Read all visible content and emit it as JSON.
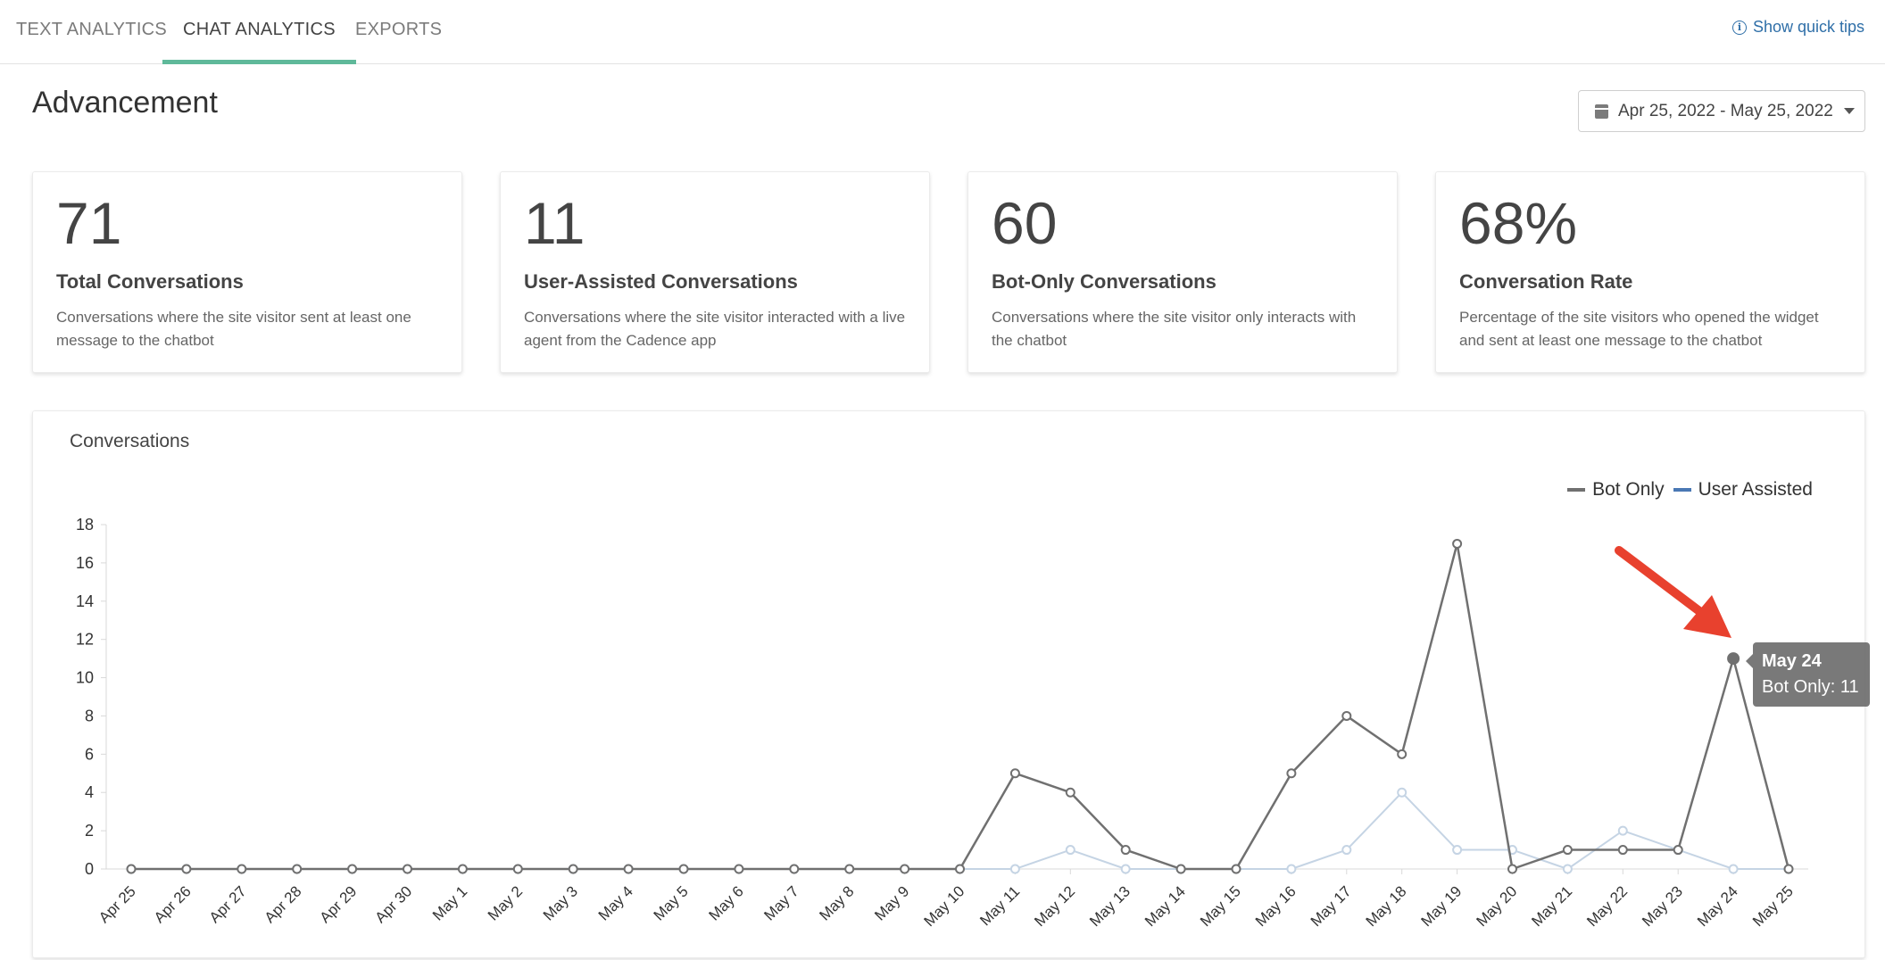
{
  "tabs": [
    {
      "label": "TEXT ANALYTICS",
      "active": false
    },
    {
      "label": "CHAT ANALYTICS",
      "active": true
    },
    {
      "label": "EXPORTS",
      "active": false
    }
  ],
  "quick_tips": "Show quick tips",
  "page_title": "Advancement",
  "date_range": "Apr 25, 2022 - May 25, 2022",
  "cards": [
    {
      "value": "71",
      "label": "Total Conversations",
      "desc": "Conversations where the site visitor sent at least one message to the chatbot"
    },
    {
      "value": "11",
      "label": "User-Assisted Conversations",
      "desc": "Conversations where the site visitor interacted with a live agent from the Cadence app"
    },
    {
      "value": "60",
      "label": "Bot-Only Conversations",
      "desc": "Conversations where the site visitor only interacts with the chatbot"
    },
    {
      "value": "68%",
      "label": "Conversation Rate",
      "desc": "Percentage of the site visitors who opened the widget and sent at least one message to the chatbot"
    }
  ],
  "chart_title": "Conversations",
  "tooltip": {
    "title": "May 24",
    "body": "Bot Only: 11"
  },
  "colors": {
    "accent": "#5fb99a",
    "link": "#2f6fa8",
    "bot_only": "#707070",
    "user_assisted": "#4a78b4",
    "user_assisted_line": "#c5d4e4"
  },
  "chart_data": {
    "type": "line",
    "title": "",
    "xlabel": "",
    "ylabel": "",
    "ylim": [
      0,
      18
    ],
    "yticks": [
      0,
      2,
      4,
      6,
      8,
      10,
      12,
      14,
      16,
      18
    ],
    "legend_position": "top-right",
    "categories": [
      "Apr 25",
      "Apr 26",
      "Apr 27",
      "Apr 28",
      "Apr 29",
      "Apr 30",
      "May 1",
      "May 2",
      "May 3",
      "May 4",
      "May 5",
      "May 6",
      "May 7",
      "May 8",
      "May 9",
      "May 10",
      "May 11",
      "May 12",
      "May 13",
      "May 14",
      "May 15",
      "May 16",
      "May 17",
      "May 18",
      "May 19",
      "May 20",
      "May 21",
      "May 22",
      "May 23",
      "May 24",
      "May 25"
    ],
    "series": [
      {
        "name": "Bot Only",
        "values": [
          0,
          0,
          0,
          0,
          0,
          0,
          0,
          0,
          0,
          0,
          0,
          0,
          0,
          0,
          0,
          0,
          5,
          4,
          1,
          0,
          0,
          5,
          8,
          6,
          17,
          0,
          1,
          1,
          1,
          11,
          0
        ]
      },
      {
        "name": "User Assisted",
        "values": [
          0,
          0,
          0,
          0,
          0,
          0,
          0,
          0,
          0,
          0,
          0,
          0,
          0,
          0,
          0,
          0,
          0,
          1,
          0,
          0,
          0,
          0,
          1,
          4,
          1,
          1,
          0,
          2,
          1,
          0,
          0
        ]
      }
    ],
    "highlighted": {
      "series": "Bot Only",
      "category": "May 24",
      "value": 11
    }
  }
}
